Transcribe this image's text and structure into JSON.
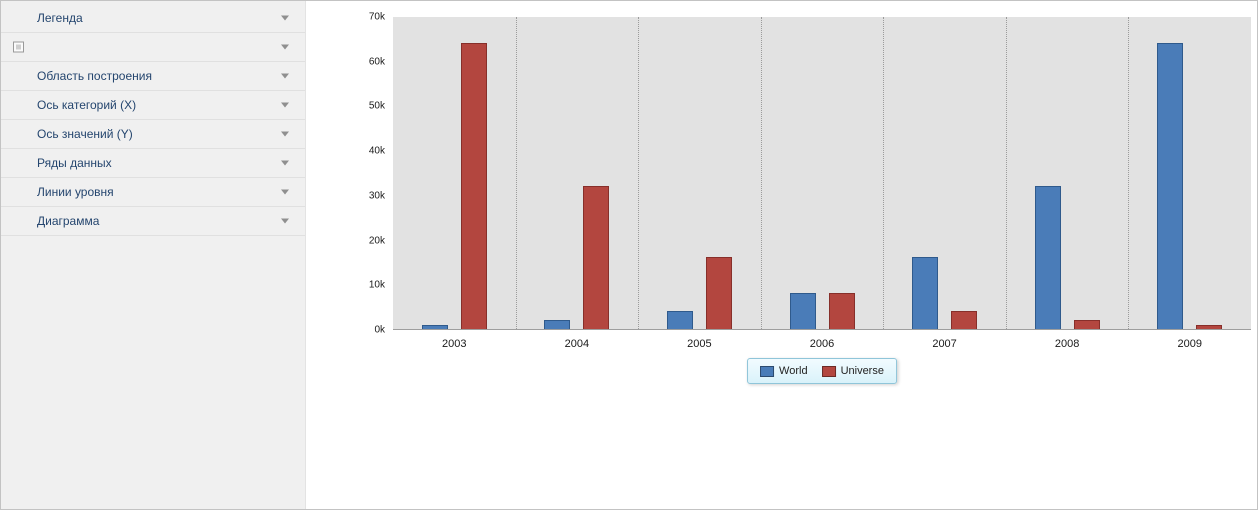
{
  "sidebar": {
    "items": [
      {
        "id": "legend",
        "label": "Легенда"
      },
      {
        "id": "unnamed",
        "label": "",
        "has_box_icon": true
      },
      {
        "id": "plot-area",
        "label": "Область построения"
      },
      {
        "id": "x-axis",
        "label": "Ось категорий (X)"
      },
      {
        "id": "y-axis",
        "label": "Ось значений (Y)"
      },
      {
        "id": "series",
        "label": "Ряды данных"
      },
      {
        "id": "constant-lines",
        "label": "Линии уровня"
      },
      {
        "id": "diagram",
        "label": "Диаграмма"
      }
    ]
  },
  "chart_data": {
    "type": "bar",
    "title": "",
    "categories": [
      "2003",
      "2004",
      "2005",
      "2006",
      "2007",
      "2008",
      "2009"
    ],
    "series": [
      {
        "name": "World",
        "color": "#4A7CB8",
        "border": "#2F5A8C",
        "values": [
          1000,
          2000,
          4000,
          8000,
          16000,
          32000,
          64000
        ]
      },
      {
        "name": "Universe",
        "color": "#B3463F",
        "border": "#872F2A",
        "values": [
          64000,
          32000,
          16000,
          8000,
          4000,
          2000,
          1000
        ]
      }
    ],
    "ylim": [
      0,
      70000
    ],
    "ytick_step": 10000,
    "ytick_labels": [
      "0k",
      "10k",
      "20k",
      "30k",
      "40k",
      "50k",
      "60k",
      "70k"
    ],
    "grid": "vertical-dotted",
    "legend_position": "bottom-center",
    "plot_background": "#e2e2e2"
  }
}
